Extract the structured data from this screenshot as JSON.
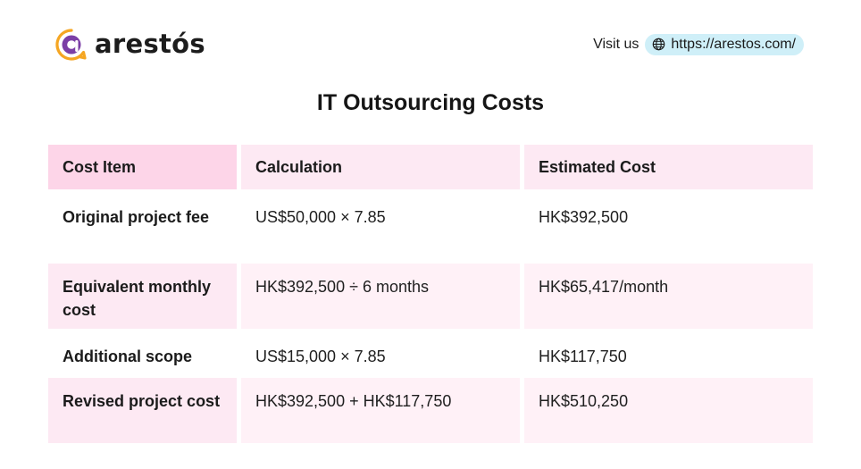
{
  "header": {
    "brand": "arestós",
    "visit_label": "Visit us",
    "url": "https://arestos.com/",
    "logo_icon": "arestos-logo-icon",
    "globe_icon": "globe-icon",
    "colors": {
      "logo_orange": "#f5a623",
      "logo_purple": "#7b3fa6",
      "pill_bg": "#cfeff8"
    }
  },
  "title": "IT Outsourcing Costs",
  "table": {
    "columns": [
      "Cost Item",
      "Calculation",
      "Estimated Cost"
    ],
    "rows": [
      {
        "item": "Original project fee",
        "calculation": "US$50,000 × 7.85",
        "cost": "HK$392,500"
      },
      {
        "item": "Equivalent monthly cost",
        "calculation": "HK$392,500 ÷ 6 months",
        "cost": "HK$65,417/month"
      },
      {
        "item": "Additional scope",
        "calculation": "US$15,000 × 7.85",
        "cost": "HK$117,750"
      },
      {
        "item": "Revised project cost",
        "calculation": "HK$392,500 + HK$117,750",
        "cost": "HK$510,250"
      }
    ],
    "colors": {
      "header_first": "#fdd5e8",
      "header": "#fde9f3",
      "row_tint": "#fff1f7"
    }
  }
}
